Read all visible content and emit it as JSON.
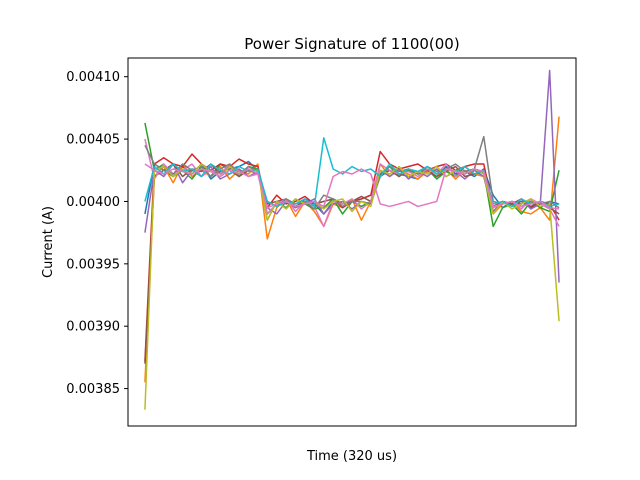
{
  "chart_data": {
    "type": "line",
    "title": "Power Signature of 1100(00)",
    "xlabel": "Time (320 us)",
    "ylabel": "Current (A)",
    "ylim": [
      0.00382,
      0.004115
    ],
    "xlim": [
      -1.8,
      45.8
    ],
    "yticks": [
      0.00385,
      0.0039,
      0.00395,
      0.004,
      0.00405,
      0.0041
    ],
    "ytick_labels": [
      "0.00385",
      "0.00390",
      "0.00395",
      "0.00400",
      "0.00405",
      "0.00410"
    ],
    "grid": false,
    "x": [
      0,
      1,
      2,
      3,
      4,
      5,
      6,
      7,
      8,
      9,
      10,
      11,
      12,
      13,
      14,
      15,
      16,
      17,
      18,
      19,
      20,
      21,
      22,
      23,
      24,
      25,
      26,
      27,
      28,
      29,
      30,
      31,
      32,
      33,
      34,
      35,
      36,
      37,
      38,
      39,
      40,
      41,
      42,
      43,
      44
    ],
    "series": [
      {
        "color": "#1f77b4",
        "values": [
          0.00399,
          0.00403,
          0.004025,
          0.00402,
          0.004028,
          0.004022,
          0.00403,
          0.004018,
          0.004024,
          0.004026,
          0.004028,
          0.004032,
          0.004025,
          0.00399,
          0.003998,
          0.004,
          0.003995,
          0.004002,
          0.003998,
          0.00399,
          0.004,
          0.003998,
          0.004,
          0.004002,
          0.004005,
          0.00402,
          0.004025,
          0.004022,
          0.00402,
          0.004018,
          0.004025,
          0.00402,
          0.004028,
          0.004022,
          0.004024,
          0.00402,
          0.004026,
          0.004005,
          0.003995,
          0.004,
          0.003998,
          0.004002,
          0.003995,
          0.004,
          0.003998
        ]
      },
      {
        "color": "#ff7f0e",
        "values": [
          0.003855,
          0.00402,
          0.004028,
          0.004015,
          0.00403,
          0.00402,
          0.004025,
          0.00402,
          0.004028,
          0.004018,
          0.004025,
          0.004022,
          0.00403,
          0.00397,
          0.003995,
          0.004002,
          0.003988,
          0.004,
          0.003992,
          0.00398,
          0.003998,
          0.003995,
          0.004002,
          0.003985,
          0.004,
          0.00403,
          0.00402,
          0.004025,
          0.004022,
          0.004018,
          0.004024,
          0.00402,
          0.004026,
          0.004018,
          0.004025,
          0.004022,
          0.00402,
          0.00399,
          0.003998,
          0.004,
          0.003992,
          0.00399,
          0.003995,
          0.003985,
          0.004068
        ]
      },
      {
        "color": "#2ca02c",
        "values": [
          0.004063,
          0.004025,
          0.00403,
          0.00402,
          0.004025,
          0.004018,
          0.004028,
          0.00402,
          0.00403,
          0.004025,
          0.00402,
          0.004028,
          0.004026,
          0.003985,
          0.004,
          0.003995,
          0.004002,
          0.003998,
          0.003994,
          0.003995,
          0.004002,
          0.00399,
          0.004,
          0.003996,
          0.004,
          0.004022,
          0.004028,
          0.00402,
          0.004025,
          0.004022,
          0.004026,
          0.004018,
          0.004024,
          0.00402,
          0.004028,
          0.004022,
          0.004024,
          0.00398,
          0.003995,
          0.003998,
          0.00399,
          0.004,
          0.003995,
          0.003992,
          0.004025
        ]
      },
      {
        "color": "#d62728",
        "values": [
          0.003872,
          0.00403,
          0.004035,
          0.00403,
          0.004028,
          0.004038,
          0.00403,
          0.004025,
          0.00403,
          0.004028,
          0.004034,
          0.00403,
          0.004028,
          0.003995,
          0.004005,
          0.003998,
          0.004,
          0.004004,
          0.003998,
          0.004,
          0.004002,
          0.003995,
          0.004,
          0.004002,
          0.004005,
          0.00404,
          0.00403,
          0.004026,
          0.004028,
          0.00403,
          0.004025,
          0.004028,
          0.00403,
          0.004025,
          0.004028,
          0.00403,
          0.00403,
          0.003995,
          0.004,
          0.003998,
          0.004002,
          0.003995,
          0.004,
          0.003998,
          0.003985
        ]
      },
      {
        "color": "#9467bd",
        "values": [
          0.003975,
          0.004025,
          0.00402,
          0.00403,
          0.004015,
          0.004025,
          0.00402,
          0.004028,
          0.004018,
          0.004022,
          0.004026,
          0.00402,
          0.004024,
          0.003995,
          0.00399,
          0.004,
          0.003995,
          0.003998,
          0.004002,
          0.00399,
          0.003998,
          0.004,
          0.003994,
          0.004,
          0.003998,
          0.004025,
          0.00402,
          0.004026,
          0.004018,
          0.004024,
          0.00402,
          0.004026,
          0.00402,
          0.004024,
          0.004018,
          0.004025,
          0.00402,
          0.003992,
          0.004,
          0.003996,
          0.004002,
          0.003994,
          0.003998,
          0.004105,
          0.003935
        ]
      },
      {
        "color": "#8c564b",
        "values": [
          0.00387,
          0.00402,
          0.004025,
          0.00403,
          0.00402,
          0.004026,
          0.004024,
          0.00403,
          0.004022,
          0.004028,
          0.00402,
          0.004025,
          0.004022,
          0.003998,
          0.004,
          0.004002,
          0.003996,
          0.004,
          0.003998,
          0.004,
          0.004002,
          0.003998,
          0.004,
          0.004004,
          0.004,
          0.004022,
          0.004025,
          0.00402,
          0.004026,
          0.004022,
          0.004025,
          0.00402,
          0.004024,
          0.004028,
          0.00402,
          0.004022,
          0.004025,
          0.003996,
          0.004,
          0.003998,
          0.004,
          0.003996,
          0.004,
          0.003995,
          0.00399
        ]
      },
      {
        "color": "#e377c2",
        "values": [
          0.00405,
          0.004018,
          0.00403,
          0.004022,
          0.004025,
          0.00403,
          0.00402,
          0.004025,
          0.004022,
          0.00403,
          0.004024,
          0.00402,
          0.004022,
          0.00399,
          0.003998,
          0.004002,
          0.003992,
          0.004,
          0.003996,
          0.00398,
          0.004,
          0.003998,
          0.004002,
          0.003994,
          0.004,
          0.00403,
          0.004025,
          0.004022,
          0.004024,
          0.00402,
          0.004026,
          0.004022,
          0.00403,
          0.00402,
          0.004024,
          0.004026,
          0.004022,
          0.003995,
          0.003998,
          0.004,
          0.003994,
          0.004002,
          0.003998,
          0.003994,
          0.00398
        ]
      },
      {
        "color": "#7f7f7f",
        "values": [
          0.004045,
          0.00403,
          0.004025,
          0.004022,
          0.00403,
          0.004025,
          0.004028,
          0.00402,
          0.004026,
          0.00403,
          0.004022,
          0.004028,
          0.004024,
          0.004,
          0.003996,
          0.004002,
          0.003998,
          0.004,
          0.003994,
          0.004005,
          0.004002,
          0.003996,
          0.004,
          0.004,
          0.003998,
          0.00402,
          0.004028,
          0.004024,
          0.004026,
          0.004022,
          0.004028,
          0.004024,
          0.004026,
          0.00403,
          0.004024,
          0.004026,
          0.004052,
          0.004,
          0.003998,
          0.004,
          0.003996,
          0.004,
          0.003998,
          0.004,
          0.003995
        ]
      },
      {
        "color": "#bcbd22",
        "values": [
          0.003833,
          0.004025,
          0.004028,
          0.00402,
          0.004026,
          0.004022,
          0.00403,
          0.004024,
          0.00402,
          0.004028,
          0.004022,
          0.004026,
          0.004024,
          0.003985,
          0.004,
          0.003994,
          0.004002,
          0.003998,
          0.004,
          0.003994,
          0.004,
          0.004002,
          0.003992,
          0.004,
          0.003996,
          0.004025,
          0.004022,
          0.004028,
          0.00402,
          0.004024,
          0.004022,
          0.004028,
          0.00402,
          0.004025,
          0.004022,
          0.004026,
          0.004022,
          0.00399,
          0.004,
          0.003994,
          0.003998,
          0.004002,
          0.003996,
          0.003998,
          0.003904
        ]
      },
      {
        "color": "#17becf",
        "values": [
          0.004,
          0.004028,
          0.004022,
          0.00403,
          0.004024,
          0.004026,
          0.00402,
          0.00403,
          0.004025,
          0.004022,
          0.004028,
          0.004024,
          0.004026,
          0.004,
          0.003996,
          0.004,
          0.003998,
          0.004002,
          0.003996,
          0.004051,
          0.004026,
          0.004022,
          0.004028,
          0.004024,
          0.004026,
          0.00402,
          0.00403,
          0.004022,
          0.004026,
          0.004024,
          0.004028,
          0.004022,
          0.004026,
          0.004024,
          0.004028,
          0.004022,
          0.004025,
          0.003998,
          0.004,
          0.003996,
          0.004002,
          0.003998,
          0.004,
          0.003996,
          0.003998
        ]
      },
      {
        "color": "#e377c2",
        "values": [
          0.00403,
          0.004025,
          0.004022,
          0.004026,
          0.004024,
          0.004022,
          0.004026,
          0.004024,
          0.00402,
          0.004025,
          0.004022,
          0.004026,
          0.004022,
          0.003995,
          0.003998,
          0.004,
          0.003996,
          0.003998,
          0.004,
          0.003996,
          0.00402,
          0.004024,
          0.004022,
          0.004026,
          0.004022,
          0.003998,
          0.003996,
          0.003998,
          0.004,
          0.003996,
          0.003998,
          0.004,
          0.004026,
          0.004024,
          0.004022,
          0.004026,
          0.004024,
          0.003996,
          0.003998,
          0.004,
          0.003996,
          0.003998,
          0.004,
          0.003995,
          0.003994
        ]
      }
    ]
  }
}
